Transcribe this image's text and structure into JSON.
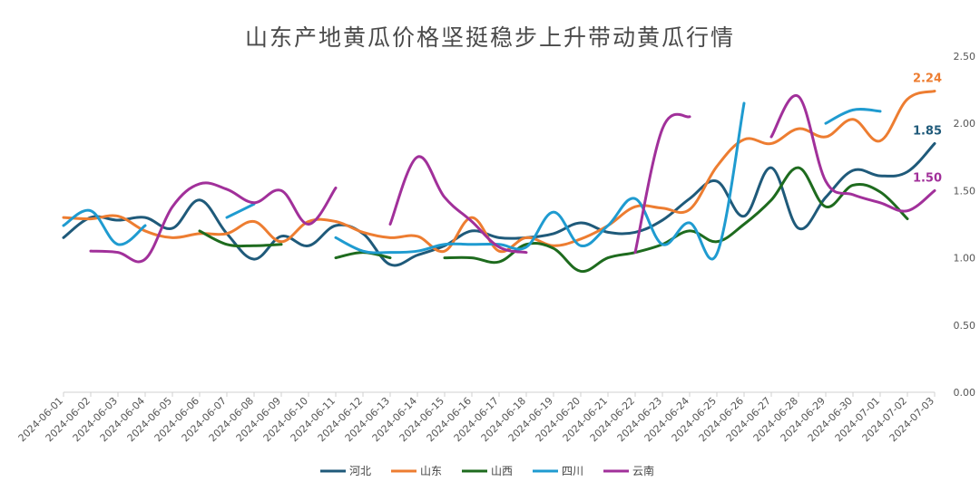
{
  "chart_data": {
    "type": "line",
    "title": "山东产地黄瓜价格坚挺稳步上升带动黄瓜行情",
    "xlabel": "",
    "ylabel": "",
    "y_axis_side": "right",
    "ylim": [
      0,
      2.5
    ],
    "yticks": [
      "0.00",
      "0.50",
      "1.00",
      "1.50",
      "2.00",
      "2.50"
    ],
    "grid": false,
    "legend_position": "bottom",
    "categories": [
      "2024-06-01",
      "2024-06-02",
      "2024-06-03",
      "2024-06-04",
      "2024-06-05",
      "2024-06-06",
      "2024-06-07",
      "2024-06-08",
      "2024-06-09",
      "2024-06-10",
      "2024-06-11",
      "2024-06-12",
      "2024-06-13",
      "2024-06-14",
      "2024-06-15",
      "2024-06-16",
      "2024-06-17",
      "2024-06-18",
      "2024-06-19",
      "2024-06-20",
      "2024-06-21",
      "2024-06-22",
      "2024-06-23",
      "2024-06-24",
      "2024-06-25",
      "2024-06-26",
      "2024-06-27",
      "2024-06-28",
      "2024-06-29",
      "2024-06-30",
      "2024-07-01",
      "2024-07-02",
      "2024-07-03"
    ],
    "series": [
      {
        "name": "河北",
        "color": "#1f5a7a",
        "end_label": "1.85",
        "values": [
          1.15,
          1.3,
          1.28,
          1.3,
          1.22,
          1.43,
          1.18,
          0.99,
          1.16,
          1.09,
          1.24,
          1.18,
          0.95,
          1.02,
          1.09,
          1.2,
          1.15,
          1.15,
          1.18,
          1.26,
          1.19,
          1.19,
          1.28,
          1.44,
          1.57,
          1.31,
          1.67,
          1.22,
          1.45,
          1.65,
          1.61,
          1.64,
          1.85
        ]
      },
      {
        "name": "山东",
        "color": "#ed7d31",
        "end_label": "2.24",
        "values": [
          1.3,
          1.29,
          1.31,
          1.2,
          1.15,
          1.18,
          1.18,
          1.27,
          1.12,
          1.27,
          1.27,
          1.19,
          1.15,
          1.16,
          1.05,
          1.3,
          1.05,
          1.15,
          1.09,
          1.14,
          1.24,
          1.38,
          1.37,
          1.36,
          1.68,
          1.88,
          1.85,
          1.96,
          1.9,
          2.03,
          1.87,
          2.18,
          2.24
        ]
      },
      {
        "name": "山西",
        "color": "#1e6b1e",
        "values": [
          null,
          null,
          null,
          null,
          null,
          1.2,
          1.1,
          1.09,
          1.1,
          null,
          1.0,
          1.04,
          1.0,
          null,
          1.0,
          1.0,
          0.97,
          1.1,
          1.07,
          0.9,
          1.0,
          1.04,
          1.1,
          1.2,
          1.12,
          1.25,
          1.43,
          1.67,
          1.38,
          1.54,
          1.49,
          1.29,
          null
        ]
      },
      {
        "name": "四川",
        "color": "#1f9bd0",
        "values": [
          1.24,
          1.35,
          1.1,
          1.24,
          null,
          null,
          1.3,
          1.4,
          null,
          null,
          1.15,
          1.05,
          1.04,
          1.05,
          1.1,
          1.1,
          1.1,
          1.08,
          1.34,
          1.09,
          1.24,
          1.44,
          1.1,
          1.26,
          1.03,
          2.15,
          null,
          null,
          2.0,
          2.1,
          2.09,
          null,
          null
        ]
      },
      {
        "name": "云南",
        "color": "#a1309a",
        "end_label": "1.50",
        "values": [
          null,
          1.05,
          1.04,
          0.99,
          1.38,
          1.55,
          1.51,
          1.41,
          1.5,
          1.25,
          1.52,
          null,
          1.25,
          1.75,
          1.45,
          1.27,
          1.08,
          1.04,
          null,
          null,
          null,
          1.04,
          1.96,
          2.05,
          null,
          null,
          1.9,
          2.2,
          1.57,
          1.47,
          1.41,
          1.35,
          1.5
        ]
      }
    ]
  }
}
